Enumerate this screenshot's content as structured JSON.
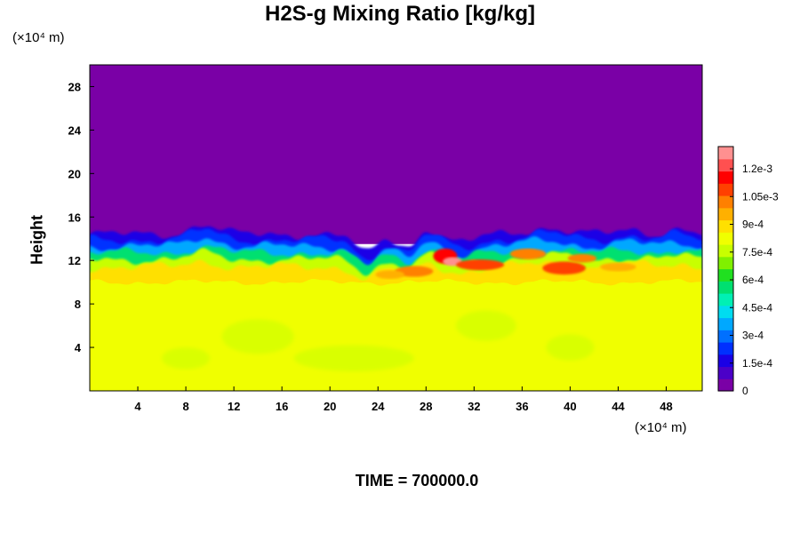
{
  "chart_data": {
    "type": "heatmap",
    "title": "H2S-g Mixing Ratio [kg/kg]",
    "ylabel": "Height",
    "xlabel": "",
    "x_unit": "(×10⁴ m)",
    "y_unit": "(×10⁴ m)",
    "x_ticks": [
      4,
      8,
      12,
      16,
      20,
      24,
      28,
      32,
      36,
      40,
      44,
      48
    ],
    "y_ticks": [
      4,
      8,
      12,
      16,
      20,
      24,
      28
    ],
    "xlim": [
      0,
      51
    ],
    "ylim": [
      0,
      30
    ],
    "colorbar": {
      "ticks": [
        {
          "value": 0,
          "label": "0"
        },
        {
          "value": 0.00015,
          "label": "1.5e-4"
        },
        {
          "value": 0.0003,
          "label": "3e-4"
        },
        {
          "value": 0.00045,
          "label": "4.5e-4"
        },
        {
          "value": 0.0006,
          "label": "6e-4"
        },
        {
          "value": 0.00075,
          "label": "7.5e-4"
        },
        {
          "value": 0.0009,
          "label": "9e-4"
        },
        {
          "value": 0.00105,
          "label": "1.05e-3"
        },
        {
          "value": 0.0012,
          "label": "1.2e-3"
        }
      ],
      "min": 0,
      "max": 0.00132,
      "colors": [
        "#7a00a6",
        "#4b00c8",
        "#1a00e6",
        "#0030ff",
        "#0070ff",
        "#00a8ff",
        "#00dcf0",
        "#00f0b4",
        "#00e070",
        "#20e020",
        "#80f000",
        "#c8ff00",
        "#f0ff00",
        "#ffe000",
        "#ffb000",
        "#ff8000",
        "#ff4000",
        "#ff0000",
        "#ff5050",
        "#ff9090"
      ]
    },
    "field_regions": [
      {
        "name": "upper",
        "y_range": [
          14,
          30
        ],
        "value": 0
      },
      {
        "name": "lower",
        "y_range": [
          0,
          10
        ],
        "value": 0.00083
      },
      {
        "name": "transition",
        "y_range": [
          10,
          14
        ],
        "value_range": [
          0.00015,
          0.00125
        ]
      }
    ],
    "annotation": "TIME = 700000.0"
  }
}
